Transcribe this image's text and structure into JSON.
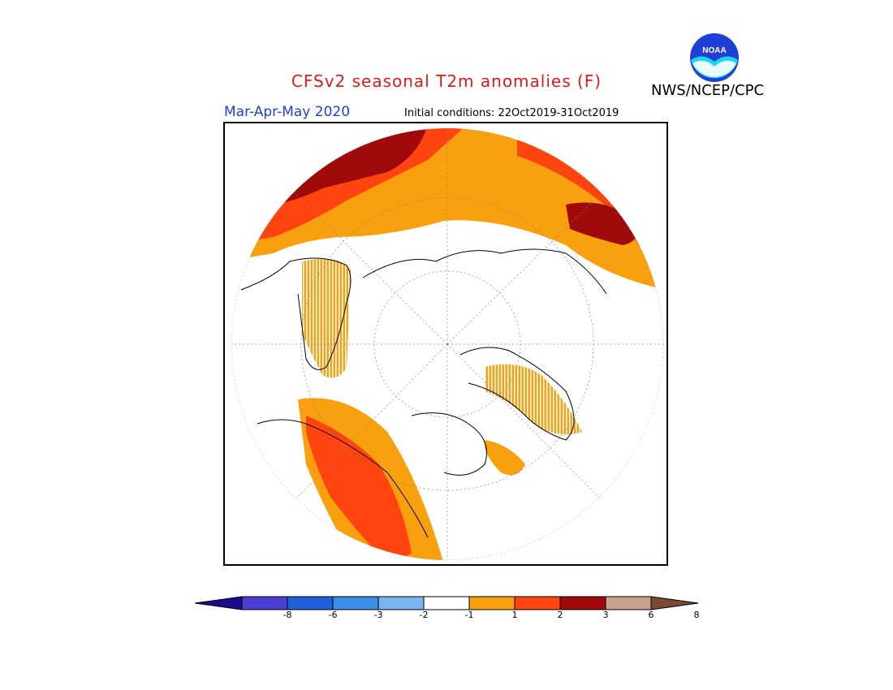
{
  "header": {
    "title": "CFSv2 seasonal T2m anomalies (F)",
    "agency": "NWS/NCEP/CPC",
    "period": "Mar-Apr-May 2020",
    "initial_conditions": "Initial conditions: 22Oct2019-31Oct2019",
    "logo_text": "NOAA"
  },
  "legend": {
    "tick_labels": [
      "-8",
      "-6",
      "-3",
      "-2",
      "-1",
      "1",
      "2",
      "3",
      "6",
      "8"
    ],
    "colors": [
      "#1a0a8c",
      "#4a3fd0",
      "#1f5fd8",
      "#3c8ee8",
      "#78b4ee",
      "#ffffff",
      "#f8a00e",
      "#ff4410",
      "#a00a0a",
      "#c8a08c",
      "#7a4a36"
    ]
  },
  "map": {
    "projection": "north-polar-stereographic",
    "anomaly_colors": {
      "plus1_plus2": "#f8a00e",
      "plus2_plus3": "#ff4410",
      "plus3_plus6": "#a00a0a"
    }
  }
}
